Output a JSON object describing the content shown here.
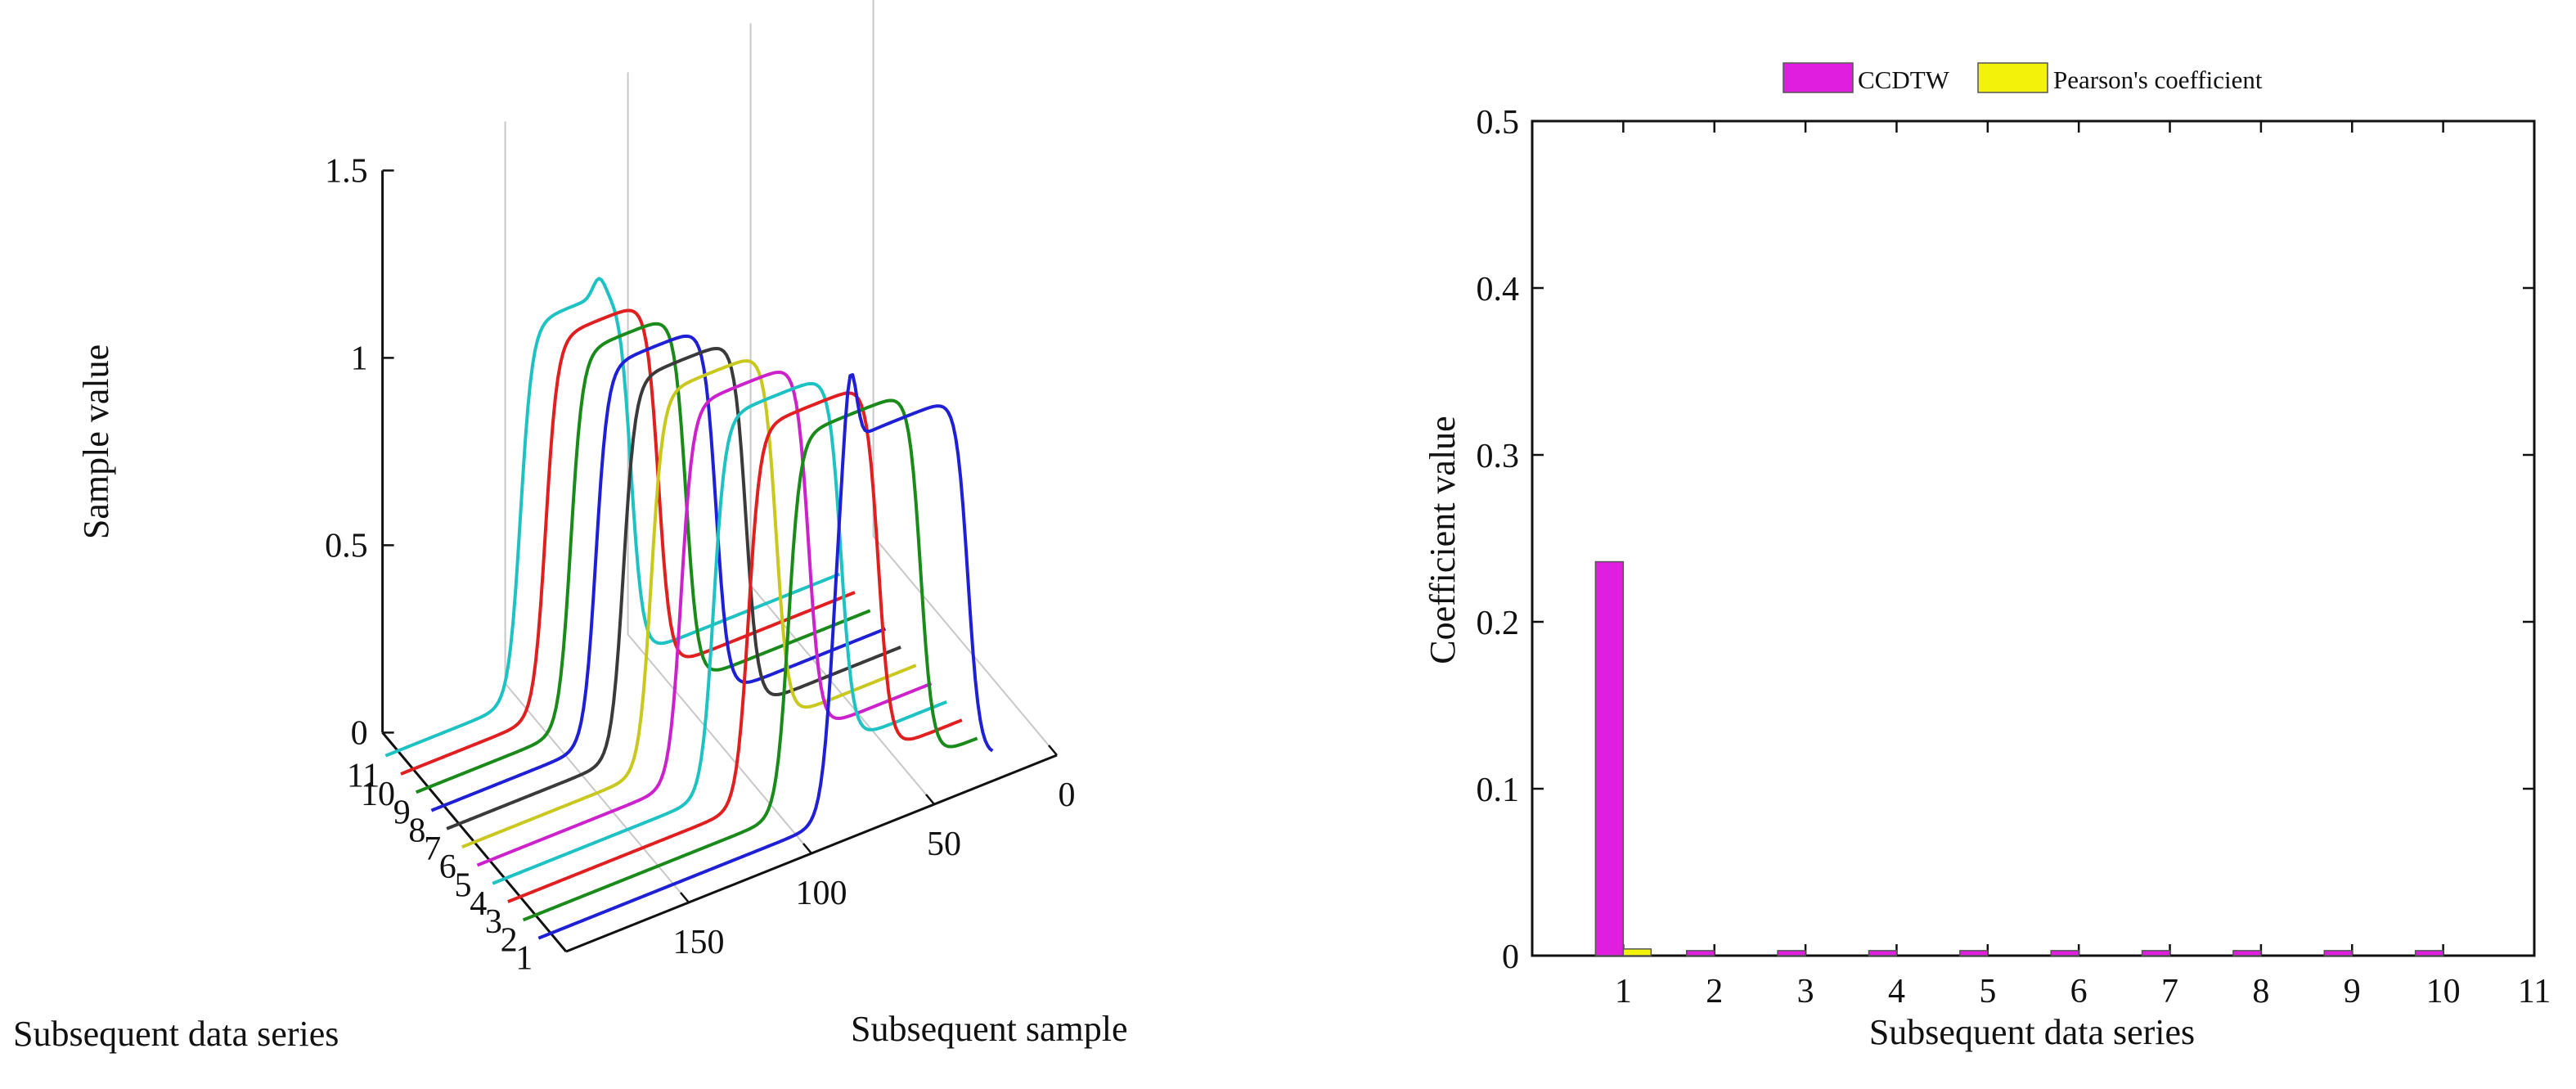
{
  "chart_data": [
    {
      "type": "line",
      "projection": "3d-waterfall",
      "title": "",
      "xlabel": "Subsequent sample",
      "ylabel": "Subsequent data series",
      "zlabel": "Sample value",
      "x_range": [
        0,
        200
      ],
      "y_range": [
        0,
        12
      ],
      "z_range": [
        0,
        1.5
      ],
      "x_ticks": [
        0,
        50,
        100,
        150
      ],
      "x_tick_labels": [
        "0",
        "50",
        "100",
        "150"
      ],
      "y_ticks": [
        1,
        2,
        3,
        4,
        5,
        6,
        7,
        8,
        9,
        10,
        11
      ],
      "y_tick_labels": [
        "1",
        "2",
        "3",
        "4",
        "5",
        "6",
        "7",
        "8",
        "9",
        "10",
        "11"
      ],
      "z_ticks": [
        0,
        0.5,
        1,
        1.5
      ],
      "z_tick_labels": [
        "0",
        "0.5",
        "1",
        "1.5"
      ],
      "grid": true,
      "series": [
        {
          "name": "1",
          "color": "#1f1fd6",
          "rise_at": 30,
          "fall_at": 85,
          "start": 20,
          "end": 205,
          "peak": 1.0,
          "bump": 0.22,
          "bump_at": 78
        },
        {
          "name": "2",
          "color": "#1a8a1a",
          "rise_at": 43,
          "fall_at": 97,
          "start": 20,
          "end": 205,
          "peak": 1.0,
          "bump": 0.0,
          "bump_at": 0
        },
        {
          "name": "3",
          "color": "#e02020",
          "rise_at": 54,
          "fall_at": 107,
          "start": 20,
          "end": 205,
          "peak": 1.0,
          "bump": 0.0,
          "bump_at": 0
        },
        {
          "name": "4",
          "color": "#1fc2c2",
          "rise_at": 63,
          "fall_at": 115,
          "start": 20,
          "end": 205,
          "peak": 1.0,
          "bump": 0.0,
          "bump_at": 0
        },
        {
          "name": "5",
          "color": "#cc22cc",
          "rise_at": 70,
          "fall_at": 122,
          "start": 20,
          "end": 205,
          "peak": 1.0,
          "bump": 0.0,
          "bump_at": 0
        },
        {
          "name": "6",
          "color": "#c8c81e",
          "rise_at": 77,
          "fall_at": 128,
          "start": 20,
          "end": 205,
          "peak": 1.0,
          "bump": 0.0,
          "bump_at": 0
        },
        {
          "name": "7",
          "color": "#3a3a3a",
          "rise_at": 83,
          "fall_at": 133,
          "start": 20,
          "end": 205,
          "peak": 1.0,
          "bump": 0.0,
          "bump_at": 0
        },
        {
          "name": "8",
          "color": "#1f1fd6",
          "rise_at": 89,
          "fall_at": 138,
          "start": 20,
          "end": 205,
          "peak": 1.0,
          "bump": 0.0,
          "bump_at": 0
        },
        {
          "name": "9",
          "color": "#1a8a1a",
          "rise_at": 95,
          "fall_at": 142,
          "start": 20,
          "end": 205,
          "peak": 1.0,
          "bump": 0.0,
          "bump_at": 0
        },
        {
          "name": "10",
          "color": "#e02020",
          "rise_at": 100,
          "fall_at": 146,
          "start": 20,
          "end": 205,
          "peak": 1.0,
          "bump": 0.0,
          "bump_at": 0
        },
        {
          "name": "11",
          "color": "#1fc2c2",
          "rise_at": 105,
          "fall_at": 150,
          "start": 20,
          "end": 205,
          "peak": 1.0,
          "bump": 0.05,
          "bump_at": 118
        }
      ]
    },
    {
      "type": "bar",
      "title": "",
      "xlabel": "Subsequent data series",
      "ylabel": "Coefficient value",
      "xlim": [
        0,
        11
      ],
      "ylim": [
        0,
        0.5
      ],
      "categories": [
        "1",
        "2",
        "3",
        "4",
        "5",
        "6",
        "7",
        "8",
        "9",
        "10"
      ],
      "x_tick_labels": [
        "1",
        "2",
        "3",
        "4",
        "5",
        "6",
        "7",
        "8",
        "9",
        "10",
        "11"
      ],
      "y_tick_labels": [
        "0",
        "0.1",
        "0.2",
        "0.3",
        "0.4",
        "0.5"
      ],
      "legend_position": "top",
      "series": [
        {
          "name": "CCDTW",
          "color": "#e01ee0",
          "values": [
            0.236,
            0.003,
            0.003,
            0.003,
            0.003,
            0.003,
            0.003,
            0.003,
            0.003,
            0.003
          ]
        },
        {
          "name": "Pearson's coefficient",
          "color": "#f2f20a",
          "values": [
            0.004,
            0.0,
            0.0,
            0.0,
            0.0,
            0.0,
            0.0,
            0.0,
            0.0,
            0.0
          ]
        }
      ]
    }
  ]
}
